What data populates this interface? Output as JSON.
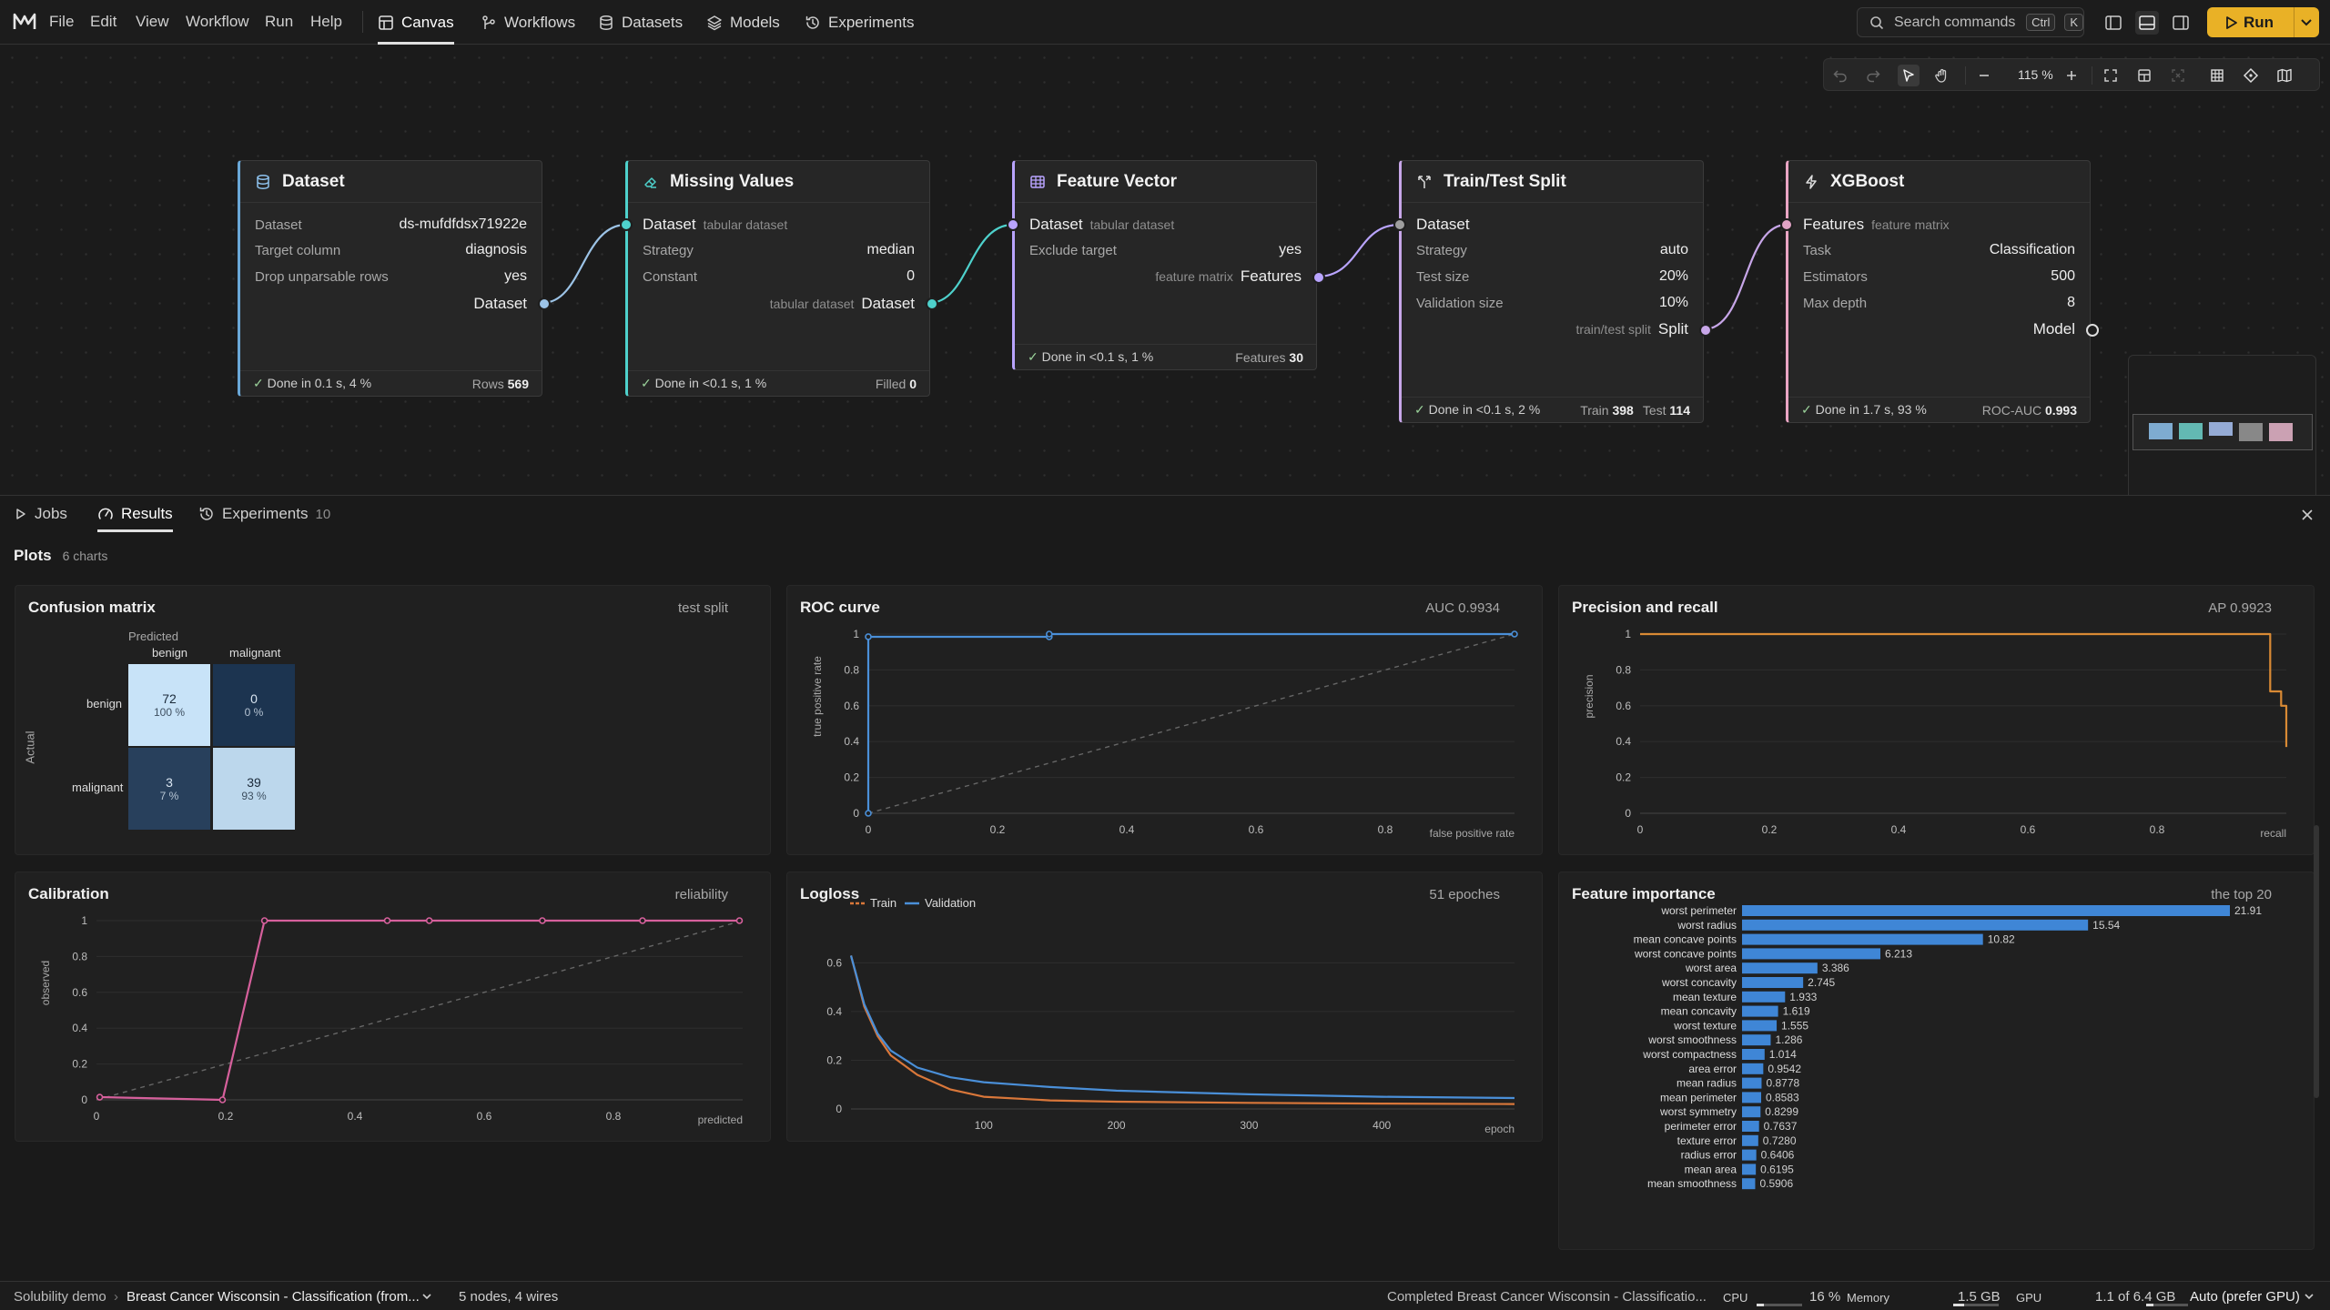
{
  "menu": [
    "File",
    "Edit",
    "View",
    "Workflow",
    "Run",
    "Help"
  ],
  "nav_tabs": [
    "Canvas",
    "Workflows",
    "Datasets",
    "Models",
    "Experiments"
  ],
  "search": {
    "placeholder": "Search commands",
    "key1": "Ctrl",
    "key2": "K"
  },
  "run_label": "Run",
  "zoom": "115 %",
  "nodes": {
    "dataset": {
      "title": "Dataset",
      "rows": [
        [
          "Dataset",
          "ds-mufdfdsx71922e"
        ],
        [
          "Target column",
          "diagnosis"
        ],
        [
          "Drop unparsable rows",
          "yes"
        ]
      ],
      "out_label": "Dataset",
      "status": "Done in 0.1 s, 4 %",
      "metric_k": "Rows",
      "metric_v": "569"
    },
    "missing": {
      "title": "Missing Values",
      "in_label": "Dataset",
      "in_sub": "tabular dataset",
      "rows": [
        [
          "Strategy",
          "median"
        ],
        [
          "Constant",
          "0"
        ]
      ],
      "out_sub": "tabular dataset",
      "out_label": "Dataset",
      "status": "Done in <0.1 s, 1 %",
      "metric_k": "Filled",
      "metric_v": "0"
    },
    "feature": {
      "title": "Feature Vector",
      "in_label": "Dataset",
      "in_sub": "tabular dataset",
      "rows": [
        [
          "Exclude target",
          "yes"
        ]
      ],
      "out_sub": "feature matrix",
      "out_label": "Features",
      "status": "Done in <0.1 s, 1 %",
      "metric_k": "Features",
      "metric_v": "30"
    },
    "split": {
      "title": "Train/Test Split",
      "in_label": "Dataset",
      "rows": [
        [
          "Strategy",
          "auto"
        ],
        [
          "Test size",
          "20%"
        ],
        [
          "Validation size",
          "10%"
        ]
      ],
      "out_sub": "train/test split",
      "out_label": "Split",
      "status": "Done in <0.1 s, 2 %",
      "metric_k": "Train",
      "metric_v": "398",
      "metric2_k": "Test",
      "metric2_v": "114"
    },
    "xgb": {
      "title": "XGBoost",
      "in_label": "Features",
      "in_sub": "feature matrix",
      "rows": [
        [
          "Task",
          "Classification"
        ],
        [
          "Estimators",
          "500"
        ],
        [
          "Max depth",
          "8"
        ]
      ],
      "out_label": "Model",
      "status": "Done in 1.7 s, 93 %",
      "metric_k": "ROC-AUC",
      "metric_v": "0.993"
    }
  },
  "bottom_tabs": {
    "jobs": "Jobs",
    "results": "Results",
    "experiments": "Experiments",
    "experiments_count": "10"
  },
  "plots": {
    "title": "Plots",
    "count": "6 charts"
  },
  "confusion": {
    "title": "Confusion matrix",
    "subtitle": "test split",
    "predicted": "Predicted",
    "actual": "Actual",
    "classes": [
      "benign",
      "malignant"
    ],
    "cells": [
      [
        "72",
        "100 %",
        "0",
        "0 %"
      ],
      [
        "3",
        "7 %",
        "39",
        "93 %"
      ]
    ],
    "intensity": [
      [
        1.0,
        0.0
      ],
      [
        0.07,
        0.93
      ]
    ]
  },
  "colors": {
    "accent": "#e9b126",
    "roc": "#4a8fd8",
    "pr": "#d98a34",
    "calib": "#d6609c",
    "train": "#d9773a",
    "val": "#4a8fd8",
    "bar": "#3f86d6",
    "cm_hi": "#c8e3f8",
    "cm_lo": "#1c3450"
  },
  "chart_data": [
    {
      "type": "line",
      "title": "ROC curve",
      "subtitle": "AUC 0.9934",
      "xlabel": "false positive rate",
      "ylabel": "true positive rate",
      "xlim": [
        0,
        1
      ],
      "ylim": [
        0,
        1
      ],
      "xticks": [
        "0",
        "0.2",
        "0.4",
        "0.6",
        "0.8"
      ],
      "yticks": [
        "0",
        "0.2",
        "0.4",
        "0.6",
        "0.8",
        "1"
      ],
      "series": [
        {
          "x": [
            0,
            0,
            0.28,
            0.28,
            1
          ],
          "y": [
            0,
            0.985,
            0.985,
            1,
            1
          ]
        }
      ],
      "diagonal": true
    },
    {
      "type": "line",
      "title": "Precision and recall",
      "subtitle": "AP 0.9923",
      "xlabel": "recall",
      "ylabel": "precision",
      "xlim": [
        0,
        1
      ],
      "ylim": [
        0,
        1
      ],
      "xticks": [
        "0",
        "0.2",
        "0.4",
        "0.6",
        "0.8"
      ],
      "yticks": [
        "0",
        "0.2",
        "0.4",
        "0.6",
        "0.8",
        "1"
      ],
      "series": [
        {
          "x": [
            0,
            0.975,
            0.975,
            0.992,
            0.992,
            1,
            1
          ],
          "y": [
            1,
            1,
            0.68,
            0.68,
            0.6,
            0.6,
            0.37
          ]
        }
      ]
    },
    {
      "type": "line",
      "title": "Calibration",
      "subtitle": "reliability",
      "xlabel": "predicted",
      "ylabel": "observed",
      "xlim": [
        0,
        1
      ],
      "ylim": [
        0,
        1
      ],
      "xticks": [
        "0",
        "0.2",
        "0.4",
        "0.6",
        "0.8"
      ],
      "yticks": [
        "0",
        "0.2",
        "0.4",
        "0.6",
        "0.8",
        "1"
      ],
      "series": [
        {
          "x": [
            0.005,
            0.195,
            0.26,
            0.45,
            0.515,
            0.69,
            0.845,
            0.995
          ],
          "y": [
            0.015,
            0,
            1,
            1,
            1,
            1,
            1,
            1
          ]
        }
      ],
      "diagonal": true
    },
    {
      "type": "line",
      "title": "Logloss",
      "subtitle": "51 epoches",
      "xlabel": "epoch",
      "xlim": [
        0,
        500
      ],
      "ylim": [
        0,
        0.65
      ],
      "xticks": [
        "100",
        "200",
        "300",
        "400"
      ],
      "yticks": [
        "0",
        "0.2",
        "0.4",
        "0.6"
      ],
      "legend": [
        "Train",
        "Validation"
      ],
      "series": [
        {
          "name": "Train",
          "x": [
            0,
            10,
            20,
            30,
            50,
            75,
            100,
            150,
            200,
            300,
            400,
            500
          ],
          "y": [
            0.63,
            0.42,
            0.3,
            0.22,
            0.14,
            0.08,
            0.05,
            0.035,
            0.03,
            0.025,
            0.022,
            0.02
          ]
        },
        {
          "name": "Validation",
          "x": [
            0,
            10,
            20,
            30,
            50,
            75,
            100,
            150,
            200,
            300,
            400,
            500
          ],
          "y": [
            0.63,
            0.43,
            0.31,
            0.24,
            0.17,
            0.13,
            0.11,
            0.09,
            0.075,
            0.06,
            0.05,
            0.045
          ]
        }
      ]
    },
    {
      "type": "bar",
      "title": "Feature importance",
      "subtitle": "the top 20",
      "categories": [
        "worst perimeter",
        "worst radius",
        "mean concave points",
        "worst concave points",
        "worst area",
        "worst concavity",
        "mean texture",
        "mean concavity",
        "worst texture",
        "worst smoothness",
        "worst compactness",
        "area error",
        "mean radius",
        "mean perimeter",
        "worst symmetry",
        "perimeter error",
        "texture error",
        "radius error",
        "mean area",
        "mean smoothness"
      ],
      "values": [
        21.91,
        15.54,
        10.82,
        6.213,
        3.386,
        2.745,
        1.933,
        1.619,
        1.555,
        1.286,
        1.014,
        0.9542,
        0.8778,
        0.8583,
        0.8299,
        0.7637,
        0.728,
        0.6406,
        0.6195,
        0.5906
      ],
      "labels": [
        "21.91",
        "15.54",
        "10.82",
        "6.213",
        "3.386",
        "2.745",
        "1.933",
        "1.619",
        "1.555",
        "1.286",
        "1.014",
        "0.9542",
        "0.8778",
        "0.8583",
        "0.8299",
        "0.7637",
        "0.7280",
        "0.6406",
        "0.6195",
        "0.5906"
      ]
    }
  ],
  "status": {
    "project": "Solubility demo",
    "workflow": "Breast Cancer Wisconsin - Classification (from...",
    "graph": "5 nodes, 4 wires",
    "job": "Completed Breast Cancer Wisconsin - Classificatio...",
    "cpu_label": "CPU",
    "cpu_value": "16 %",
    "cpu_level": 0.16,
    "mem_label": "Memory",
    "mem_value": "1.5 GB",
    "mem_level": 0.23,
    "gpu_label": "GPU",
    "gpu_value": "1.1 of 6.4 GB",
    "gpu_level": 0.17,
    "device": "Auto (prefer GPU)"
  }
}
